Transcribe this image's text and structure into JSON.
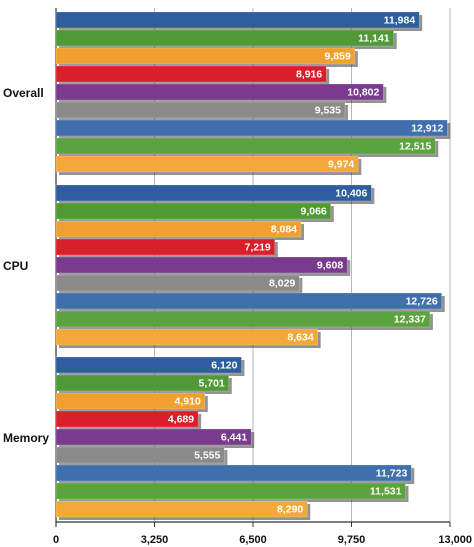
{
  "chart_data": {
    "type": "bar",
    "orientation": "horizontal",
    "categories": [
      "Overall",
      "CPU",
      "Memory"
    ],
    "xlim": [
      0,
      13000
    ],
    "x_ticks": [
      0,
      3250,
      6500,
      9750,
      13000
    ],
    "x_tick_labels": [
      "0",
      "3,250",
      "6,500",
      "9,750",
      "13,000"
    ],
    "grid": true,
    "legend": "none",
    "series": [
      {
        "color": "#2e5e9e",
        "values": [
          11984,
          10406,
          6120
        ],
        "labels": [
          "11,984",
          "10,406",
          "6,120"
        ]
      },
      {
        "color": "#4f9a37",
        "values": [
          11141,
          9066,
          5701
        ],
        "labels": [
          "11,141",
          "9,066",
          "5,701"
        ]
      },
      {
        "color": "#f0a030",
        "values": [
          9859,
          8084,
          4910
        ],
        "labels": [
          "9,859",
          "8,084",
          "4,910"
        ]
      },
      {
        "color": "#d81f2a",
        "values": [
          8916,
          7219,
          4689
        ],
        "labels": [
          "8,916",
          "7,219",
          "4,689"
        ]
      },
      {
        "color": "#7a3a8e",
        "values": [
          10802,
          9608,
          6441
        ],
        "labels": [
          "10,802",
          "9,608",
          "6,441"
        ]
      },
      {
        "color": "#8a8a8a",
        "values": [
          9535,
          8029,
          5555
        ],
        "labels": [
          "9,535",
          "8,029",
          "5,555"
        ]
      },
      {
        "color": "#3f6fad",
        "values": [
          12912,
          12726,
          11723
        ],
        "labels": [
          "12,912",
          "12,726",
          "11,723"
        ]
      },
      {
        "color": "#5aa33e",
        "values": [
          12515,
          12337,
          11531
        ],
        "labels": [
          "12,515",
          "12,337",
          "11,531"
        ]
      },
      {
        "color": "#f3a83a",
        "values": [
          9974,
          8634,
          8290
        ],
        "labels": [
          "9,974",
          "8,634",
          "8,290"
        ]
      }
    ]
  }
}
